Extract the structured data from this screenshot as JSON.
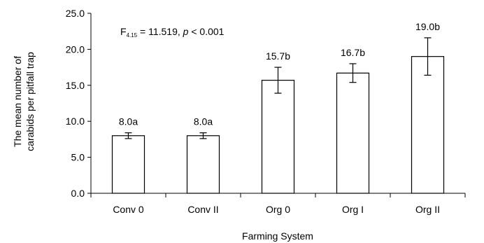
{
  "chart_data": {
    "type": "bar",
    "categories": [
      "Conv 0",
      "Conv II",
      "Org 0",
      "Org I",
      "Org II"
    ],
    "values": [
      8.0,
      8.0,
      15.7,
      16.7,
      19.0
    ],
    "errors": [
      0.4,
      0.4,
      1.8,
      1.3,
      2.6
    ],
    "data_labels": [
      "8.0a",
      "8.0a",
      "15.7b",
      "16.7b",
      "19.0b"
    ],
    "xlabel": "Farming System",
    "ylabel_lines": [
      "The mean number of",
      "carabids per pitfall trap"
    ],
    "ylim": [
      0,
      25
    ],
    "yticks": [
      "0.0",
      "5.0",
      "10.0",
      "15.0",
      "20.0",
      "25.0"
    ],
    "annotation": {
      "F": "F",
      "df": "4.15",
      "rest": " = 11.519, ",
      "p": "p",
      "pval": " < 0.001"
    },
    "grid": false,
    "bar_fill": "#ffffff",
    "bar_stroke": "#000000"
  }
}
